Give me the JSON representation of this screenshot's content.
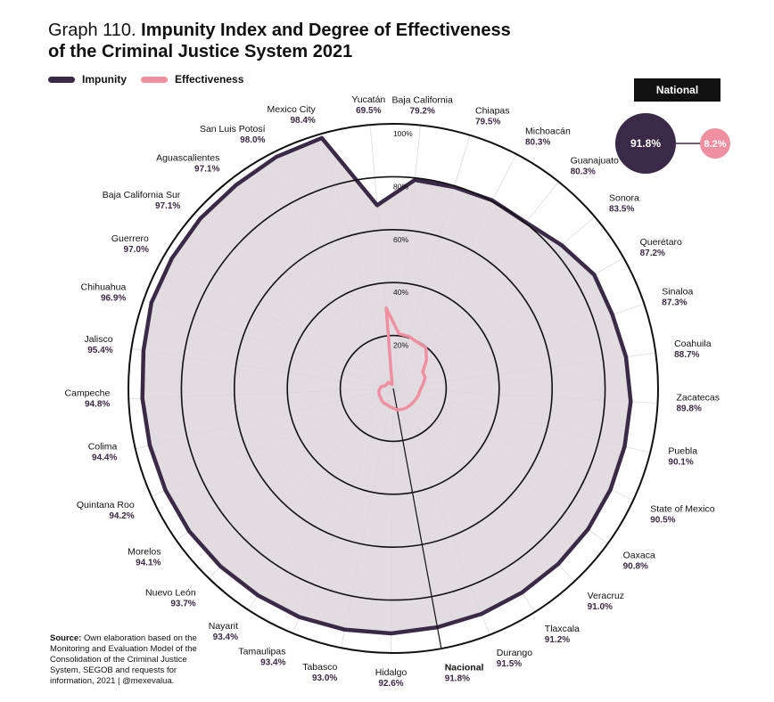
{
  "title": {
    "prefix": "Graph 110.",
    "main": "Impunity Index and Degree of Effectiveness of the Criminal Justice System 2021",
    "line1": "Impunity Index and Degree of Effectiveness",
    "line2": "of the Criminal Justice System 2021"
  },
  "legend": [
    {
      "label": "Impunity",
      "color": "#3b2a47"
    },
    {
      "label": "Effectiveness",
      "color": "#f08fa0"
    }
  ],
  "national": {
    "title": "National",
    "impunity_label": "91.8%",
    "effectiveness_label": "8.2%",
    "impunity_color": "#3b2a47",
    "effectiveness_color": "#f08fa0"
  },
  "source": {
    "label": "Source:",
    "text": "Own elaboration based on the Monitoring and Evaluation Model of the Consolidation of the Criminal Justice System, SEGOB and requests for information, 2021 | @mexevalua."
  },
  "chart_data": {
    "type": "radar",
    "title": "Impunity Index and Degree of Effectiveness of the Criminal Justice System 2021",
    "rlim": [
      0,
      100
    ],
    "ticks": [
      "20%",
      "40%",
      "60%",
      "80%",
      "100%"
    ],
    "tick_values": [
      20,
      40,
      60,
      80,
      100
    ],
    "legend_position": "top-left",
    "categories": [
      "Yucatán",
      "Baja  California",
      "Chiapas",
      "Michoacán",
      "Guanajuato",
      "Sonora",
      "Querétaro",
      "Sinaloa",
      "Coahuila",
      "Zacatecas",
      "Puebla",
      "State of Mexico",
      "Oaxaca",
      "Veracruz",
      "Tlaxcala",
      "Durango",
      "Nacional",
      "Hidalgo",
      "Tabasco",
      "Tamaulipas",
      "Nayarit",
      "Nuevo León",
      "Morelos",
      "Quintana Roo",
      "Colima",
      "Campeche",
      "Jalisco",
      "Chihuahua",
      "Guerrero",
      "Baja  California Sur",
      "Aguascalientes",
      "San Luis Potosí",
      "Mexico City"
    ],
    "value_labels": [
      "69.5%",
      "79.2%",
      "79.5%",
      "80.3%",
      "80.3%",
      "83.5%",
      "87.2%",
      "87.3%",
      "88.7%",
      "89.8%",
      "90.1%",
      "90.5%",
      "90.8%",
      "91.0%",
      "91.2%",
      "91.5%",
      "91.8%",
      "92.6%",
      "93.0%",
      "93.4%",
      "93.4%",
      "93.7%",
      "94.1%",
      "94.2%",
      "94.4%",
      "94.8%",
      "95.4%",
      "96.9%",
      "97.0%",
      "97.1%",
      "97.1%",
      "98.0%",
      "98.4%"
    ],
    "series": [
      {
        "name": "Impunity",
        "color": "#3b2a47",
        "values": [
          69.5,
          79.2,
          79.5,
          80.3,
          80.3,
          83.5,
          87.2,
          87.3,
          88.7,
          89.8,
          90.1,
          90.5,
          90.8,
          91.0,
          91.2,
          91.5,
          91.8,
          92.6,
          93.0,
          93.4,
          93.4,
          93.7,
          94.1,
          94.2,
          94.4,
          94.8,
          95.4,
          96.9,
          97.0,
          97.1,
          97.1,
          98.0,
          98.4
        ]
      },
      {
        "name": "Effectiveness",
        "color": "#f08fa0",
        "values": [
          30.5,
          20.8,
          20.5,
          19.7,
          19.7,
          16.5,
          12.8,
          12.7,
          11.3,
          10.2,
          9.9,
          9.5,
          9.2,
          9.0,
          8.8,
          8.5,
          8.2,
          7.4,
          7.0,
          6.6,
          6.6,
          6.3,
          5.9,
          5.8,
          5.6,
          5.2,
          4.6,
          3.1,
          3.0,
          2.9,
          2.9,
          2.0,
          1.6
        ]
      }
    ]
  }
}
